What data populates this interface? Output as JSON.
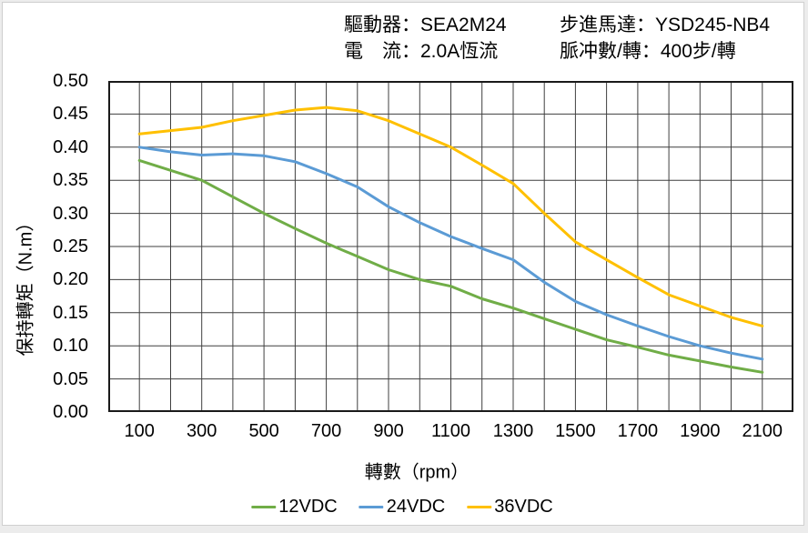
{
  "header": {
    "col1": {
      "line1": "驅動器：SEA2M24",
      "line2": "電　流：2.0A恆流"
    },
    "col2": {
      "line1": "步進馬達：YSD245-NB4",
      "line2": "脈冲數/轉：400步/轉"
    }
  },
  "colors": {
    "grid": "#3f3f3f",
    "plot_border": "#1a1a1a",
    "text": "#000000",
    "green_12vdc": "#70AD47",
    "blue_24vdc": "#5B9BD5",
    "yellow_36vdc": "#FFC000"
  },
  "chart_data": {
    "type": "line",
    "title": "",
    "xlabel": "轉數（rpm）",
    "ylabel": "保持轉矩（N.m）",
    "xlim": [
      0,
      2200
    ],
    "ylim": [
      0,
      0.5
    ],
    "grid": {
      "on": true,
      "x_step": 100,
      "y_step": 0.05
    },
    "legend_position": "bottom",
    "x_tick_values": [
      100,
      300,
      500,
      700,
      900,
      1100,
      1300,
      1500,
      1700,
      1900,
      2100
    ],
    "y_tick_labels": [
      "0.00",
      "0.05",
      "0.10",
      "0.15",
      "0.20",
      "0.25",
      "0.30",
      "0.35",
      "0.40",
      "0.45",
      "0.50"
    ],
    "x": [
      100,
      200,
      300,
      400,
      500,
      600,
      700,
      800,
      900,
      1000,
      1100,
      1200,
      1300,
      1400,
      1500,
      1600,
      1700,
      1800,
      1900,
      2000,
      2100
    ],
    "series": [
      {
        "name": "12VDC",
        "color": "#70AD47",
        "values": [
          0.38,
          0.365,
          0.35,
          0.325,
          0.3,
          0.277,
          0.255,
          0.235,
          0.215,
          0.2,
          0.19,
          0.171,
          0.157,
          0.141,
          0.125,
          0.109,
          0.098,
          0.086,
          0.077,
          0.068,
          0.06
        ]
      },
      {
        "name": "24VDC",
        "color": "#5B9BD5",
        "values": [
          0.4,
          0.393,
          0.388,
          0.39,
          0.387,
          0.378,
          0.36,
          0.34,
          0.31,
          0.286,
          0.265,
          0.247,
          0.23,
          0.196,
          0.167,
          0.147,
          0.13,
          0.114,
          0.1,
          0.089,
          0.08
        ]
      },
      {
        "name": "36VDC",
        "color": "#FFC000",
        "values": [
          0.42,
          0.425,
          0.43,
          0.44,
          0.448,
          0.456,
          0.46,
          0.455,
          0.44,
          0.42,
          0.4,
          0.373,
          0.345,
          0.3,
          0.257,
          0.23,
          0.203,
          0.177,
          0.16,
          0.143,
          0.13
        ]
      }
    ]
  }
}
